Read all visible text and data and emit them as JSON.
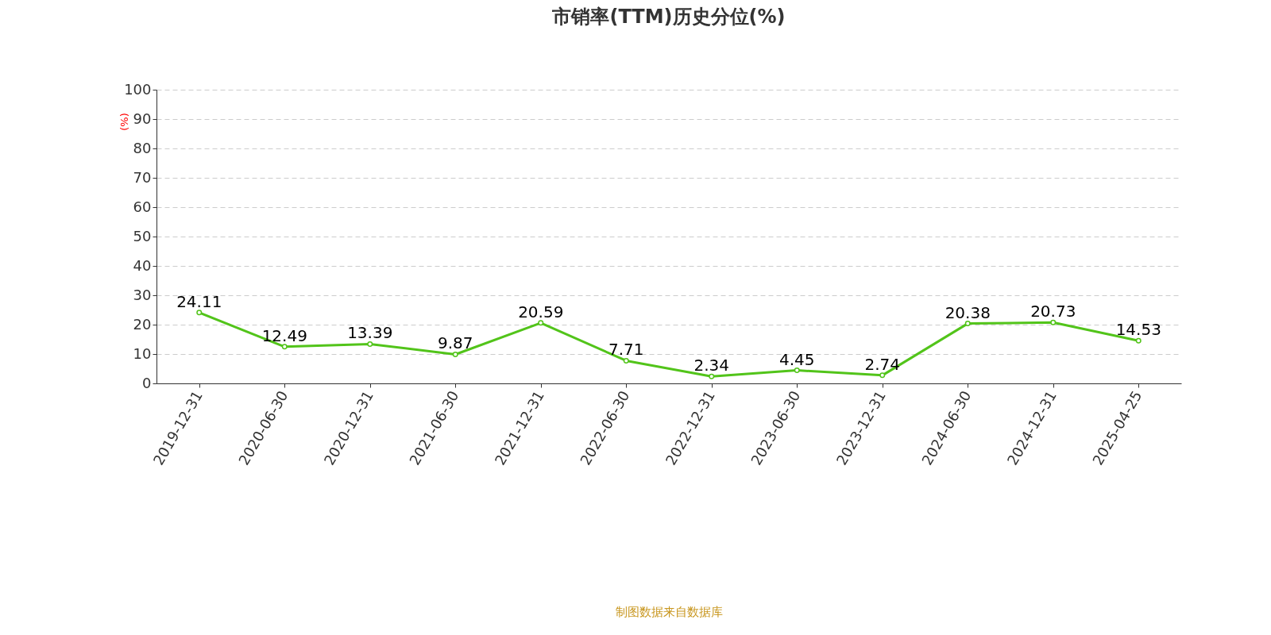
{
  "chart_data": {
    "type": "line",
    "title": "市销率(TTM)历史分位(%)",
    "ylabel": "(%)",
    "categories": [
      "2019-12-31",
      "2020-06-30",
      "2020-12-31",
      "2021-06-30",
      "2021-12-31",
      "2022-06-30",
      "2022-12-31",
      "2023-06-30",
      "2023-12-31",
      "2024-06-30",
      "2024-12-31",
      "2025-04-25"
    ],
    "series": [
      {
        "color": "#52c41a",
        "values": [
          24.11,
          12.49,
          13.39,
          9.87,
          20.59,
          7.71,
          2.34,
          4.45,
          2.74,
          20.38,
          20.73,
          14.53
        ]
      }
    ],
    "ylim": [
      0,
      100
    ],
    "yticks": [
      0,
      10,
      20,
      30,
      40,
      50,
      60,
      70,
      80,
      90,
      100
    ],
    "grid": "y",
    "legend": false,
    "marker": "circle",
    "line_style": "solid",
    "data_labels": true,
    "annotations": [
      "制图数据来自数据库"
    ]
  }
}
